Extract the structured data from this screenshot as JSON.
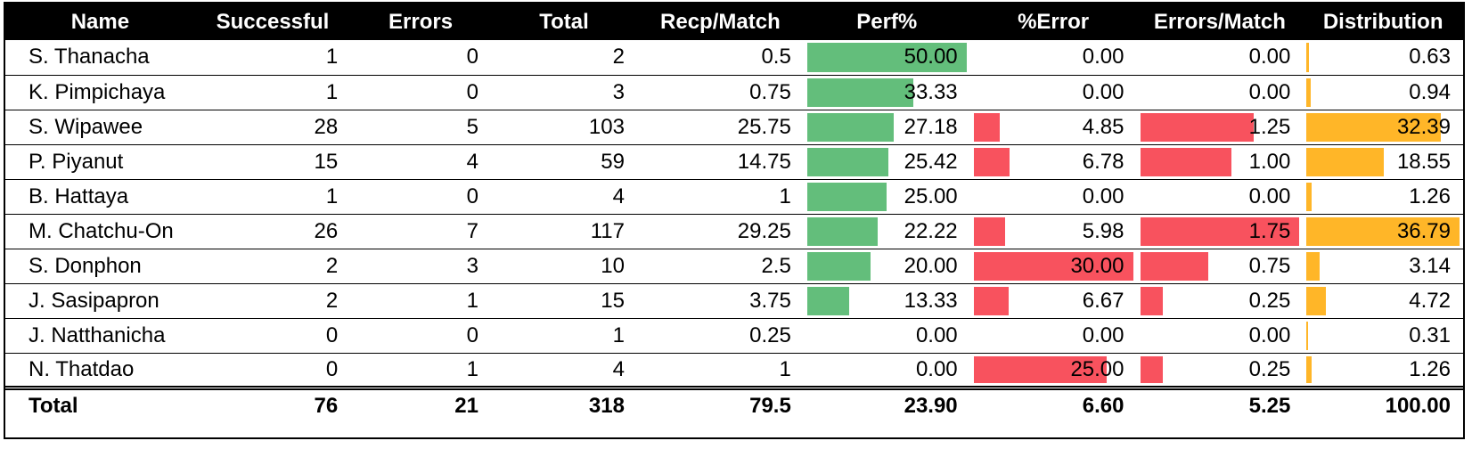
{
  "colors": {
    "perf_bar": "#63be7b",
    "error_bar": "#f8525e",
    "errors_match_bar": "#f8525e",
    "distribution_bar": "#ffb628"
  },
  "headers": [
    "Name",
    "Successful",
    "Errors",
    "Total",
    "Recp/Match",
    "Perf%",
    "%Error",
    "Errors/Match",
    "Distribution"
  ],
  "rows": [
    {
      "name": "S. Thanacha",
      "successful": "1",
      "errors": "0",
      "total": "2",
      "recp_match": "0.5",
      "perf": "50.00",
      "perr": "0.00",
      "err_match": "0.00",
      "dist": "0.63"
    },
    {
      "name": "K. Pimpichaya",
      "successful": "1",
      "errors": "0",
      "total": "3",
      "recp_match": "0.75",
      "perf": "33.33",
      "perr": "0.00",
      "err_match": "0.00",
      "dist": "0.94"
    },
    {
      "name": "S. Wipawee",
      "successful": "28",
      "errors": "5",
      "total": "103",
      "recp_match": "25.75",
      "perf": "27.18",
      "perr": "4.85",
      "err_match": "1.25",
      "dist": "32.39"
    },
    {
      "name": "P. Piyanut",
      "successful": "15",
      "errors": "4",
      "total": "59",
      "recp_match": "14.75",
      "perf": "25.42",
      "perr": "6.78",
      "err_match": "1.00",
      "dist": "18.55"
    },
    {
      "name": "B. Hattaya",
      "successful": "1",
      "errors": "0",
      "total": "4",
      "recp_match": "1",
      "perf": "25.00",
      "perr": "0.00",
      "err_match": "0.00",
      "dist": "1.26"
    },
    {
      "name": "M. Chatchu-On",
      "successful": "26",
      "errors": "7",
      "total": "117",
      "recp_match": "29.25",
      "perf": "22.22",
      "perr": "5.98",
      "err_match": "1.75",
      "dist": "36.79"
    },
    {
      "name": "S. Donphon",
      "successful": "2",
      "errors": "3",
      "total": "10",
      "recp_match": "2.5",
      "perf": "20.00",
      "perr": "30.00",
      "err_match": "0.75",
      "dist": "3.14"
    },
    {
      "name": "J. Sasipapron",
      "successful": "2",
      "errors": "1",
      "total": "15",
      "recp_match": "3.75",
      "perf": "13.33",
      "perr": "6.67",
      "err_match": "0.25",
      "dist": "4.72"
    },
    {
      "name": "J. Natthanicha",
      "successful": "0",
      "errors": "0",
      "total": "1",
      "recp_match": "0.25",
      "perf": "0.00",
      "perr": "0.00",
      "err_match": "0.00",
      "dist": "0.31"
    },
    {
      "name": "N. Thatdao",
      "successful": "0",
      "errors": "1",
      "total": "4",
      "recp_match": "1",
      "perf": "0.00",
      "perr": "25.00",
      "err_match": "0.25",
      "dist": "1.26"
    }
  ],
  "total": {
    "name": "Total",
    "successful": "76",
    "errors": "21",
    "total": "318",
    "recp_match": "79.5",
    "perf": "23.90",
    "perr": "6.60",
    "err_match": "5.25",
    "dist": "100.00"
  }
}
